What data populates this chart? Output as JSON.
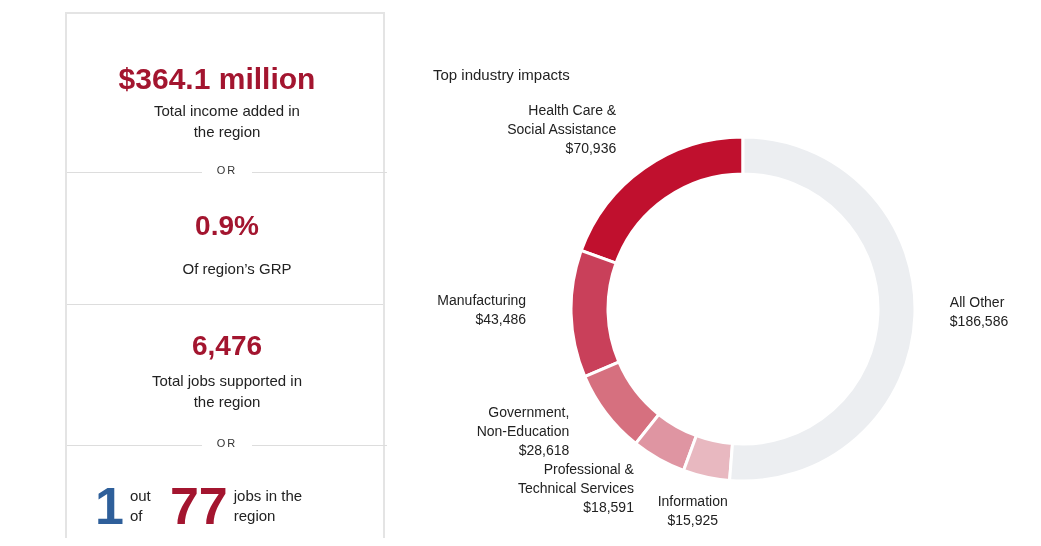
{
  "chart_data": [
    {
      "type": "other",
      "annotations": [
        "$364.1 million",
        "Total income added in the region",
        "OR",
        "0.9%",
        "Of region’s GRP",
        "6,476",
        "Total jobs supported in the region",
        "OR",
        "1",
        "out of",
        "77",
        "jobs in the region"
      ]
    },
    {
      "type": "donut",
      "title": "Top industry impacts",
      "categories": [
        "Health Care & Social Assistance",
        "Manufacturing",
        "Government, Non-Education",
        "Professional & Technical Services",
        "Information",
        "All Other"
      ],
      "values": [
        70936,
        43486,
        28618,
        18591,
        15925,
        186586
      ],
      "value_labels": [
        "$70,936",
        "$43,486",
        "$28,618",
        "$18,591",
        "$15,925",
        "$186,586"
      ],
      "colors": [
        "#c0102e",
        "#c9405a",
        "#d6707f",
        "#df95a2",
        "#e8b8c0",
        "#eceef1"
      ]
    }
  ]
}
